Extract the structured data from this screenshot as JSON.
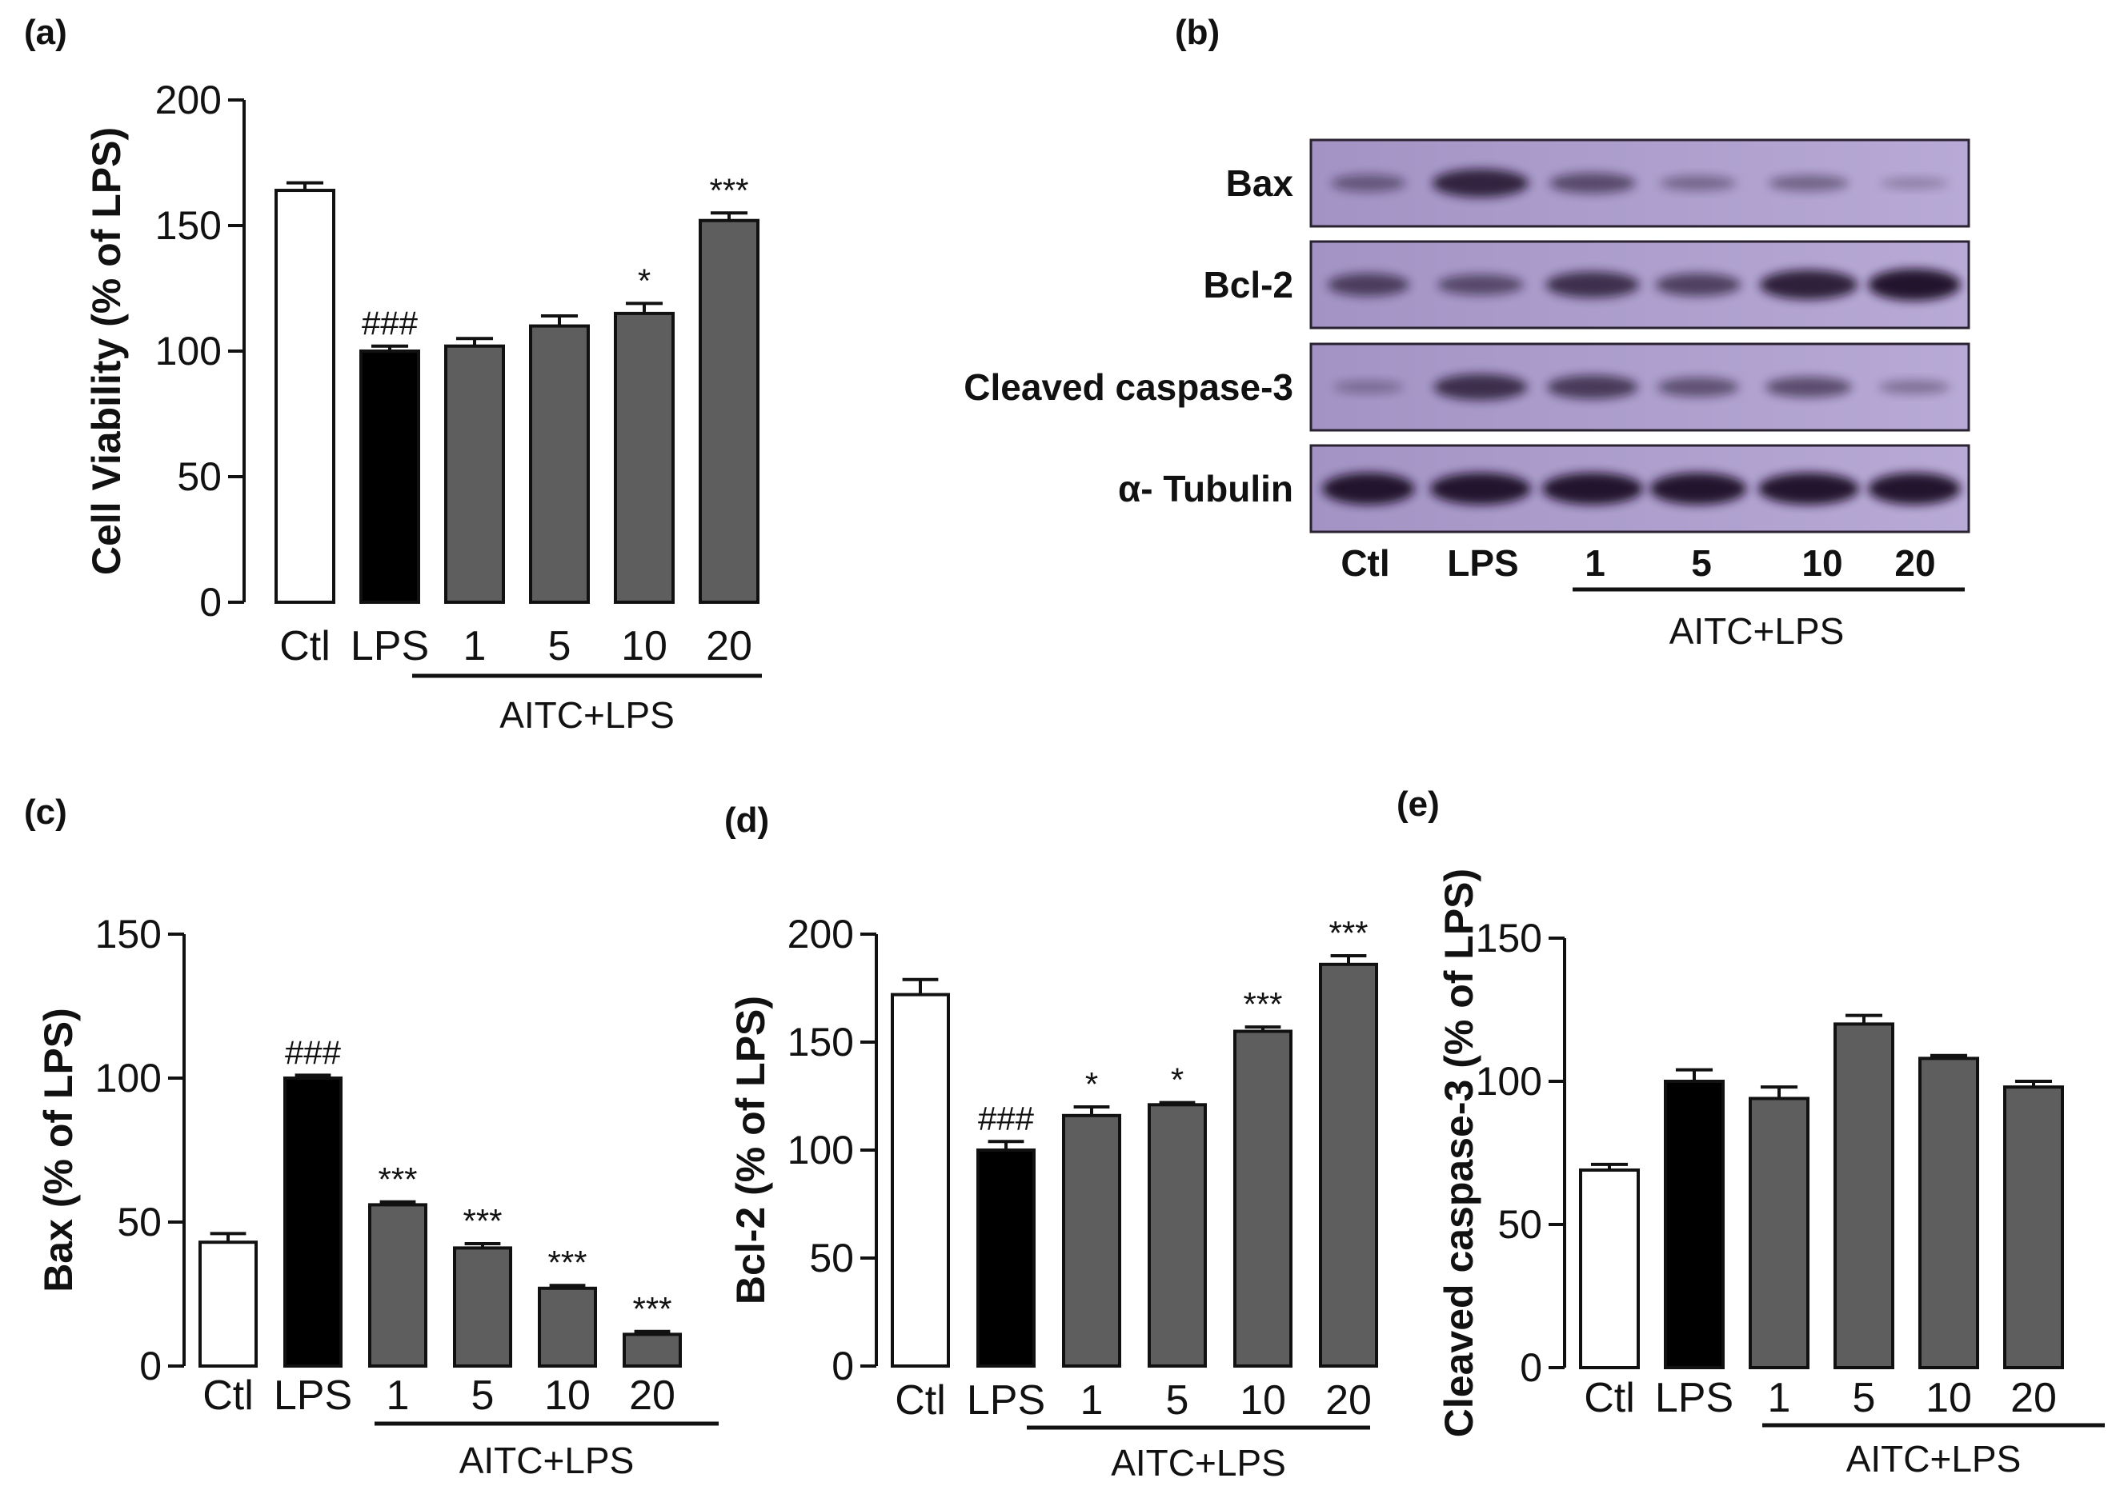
{
  "colors": {
    "ctl": "#ffffff",
    "lps": "#000000",
    "treated": "#5e5e5e",
    "axis": "#111111",
    "blot_bg": "#a293c4",
    "blot_bg_light": "#b8aad6",
    "band": "#1a1026"
  },
  "chart_data": [
    {
      "panel": "(a)",
      "type": "bar",
      "ylabel": "Cell Viability (% of LPS)",
      "ylim": [
        0,
        200
      ],
      "yticks": [
        0,
        50,
        100,
        150,
        200
      ],
      "categories": [
        "Ctl",
        "LPS",
        "1",
        "5",
        "10",
        "20"
      ],
      "group_label": "AITC+LPS",
      "values": [
        164,
        100,
        102,
        110,
        115,
        152
      ],
      "errors": [
        3,
        2,
        3,
        4,
        4,
        3
      ],
      "annotations": [
        "",
        "###",
        "",
        "",
        "*",
        "***"
      ]
    },
    {
      "panel": "(c)",
      "type": "bar",
      "ylabel": "Bax (% of LPS)",
      "ylim": [
        0,
        150
      ],
      "yticks": [
        0,
        50,
        100,
        150
      ],
      "categories": [
        "Ctl",
        "LPS",
        "1",
        "5",
        "10",
        "20"
      ],
      "group_label": "AITC+LPS",
      "values": [
        43,
        100,
        56,
        41,
        27,
        11
      ],
      "errors": [
        3,
        1,
        1,
        1.5,
        1,
        1
      ],
      "annotations": [
        "",
        "###",
        "***",
        "***",
        "***",
        "***"
      ]
    },
    {
      "panel": "(d)",
      "type": "bar",
      "ylabel": "Bcl-2 (% of LPS)",
      "ylim": [
        0,
        200
      ],
      "yticks": [
        0,
        50,
        100,
        150,
        200
      ],
      "categories": [
        "Ctl",
        "LPS",
        "1",
        "5",
        "10",
        "20"
      ],
      "group_label": "AITC+LPS",
      "values": [
        172,
        100,
        116,
        121,
        155,
        186
      ],
      "errors": [
        7,
        4,
        4,
        1,
        2,
        4
      ],
      "annotations": [
        "",
        "###",
        "*",
        "*",
        "***",
        "***"
      ]
    },
    {
      "panel": "(e)",
      "type": "bar",
      "ylabel": "Cleaved caspase-3 (% of LPS)",
      "ylim": [
        0,
        150
      ],
      "yticks": [
        0,
        50,
        100,
        150
      ],
      "categories": [
        "Ctl",
        "LPS",
        "1",
        "5",
        "10",
        "20"
      ],
      "group_label": "AITC+LPS",
      "values": [
        69,
        100,
        94,
        120,
        108,
        98
      ],
      "errors": [
        2,
        4,
        4,
        3,
        1,
        2
      ],
      "annotations": [
        "",
        "",
        "",
        "",
        "",
        ""
      ]
    }
  ],
  "blot": {
    "panel": "(b)",
    "rows": [
      {
        "label": "Bax",
        "intensities": [
          0.35,
          0.85,
          0.5,
          0.25,
          0.3,
          0.08
        ]
      },
      {
        "label": "Bcl-2",
        "intensities": [
          0.6,
          0.5,
          0.75,
          0.6,
          0.9,
          1.0
        ]
      },
      {
        "label": "Cleaved caspase-3",
        "intensities": [
          0.15,
          0.75,
          0.65,
          0.45,
          0.5,
          0.2
        ]
      },
      {
        "label": "α- Tubulin",
        "intensities": [
          1.0,
          1.0,
          1.0,
          1.0,
          1.0,
          1.0
        ]
      }
    ],
    "lanes": [
      "Ctl",
      "LPS",
      "1",
      "5",
      "10",
      "20"
    ],
    "group_label": "AITC+LPS"
  }
}
